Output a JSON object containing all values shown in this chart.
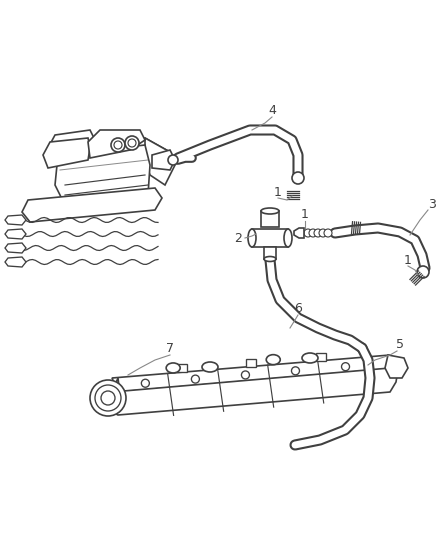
{
  "bg_color": "#ffffff",
  "line_color": "#404040",
  "figsize": [
    4.38,
    5.33
  ],
  "dpi": 100,
  "engine_color": "#404040",
  "label_fontsize": 9,
  "leader_color": "#888888",
  "hose_outer_lw": 7,
  "hose_inner_lw": 4,
  "component_lw": 1.2
}
